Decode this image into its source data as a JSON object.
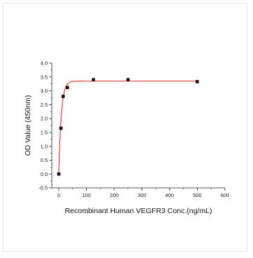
{
  "chart_data": {
    "type": "scatter",
    "title": "",
    "xlabel": "Recombinant Human VEGFR3 Conc.(ng/mL)",
    "ylabel": "OD Value (450nm)",
    "xlim": [
      -25,
      600
    ],
    "ylim": [
      -0.5,
      4.0
    ],
    "x_ticks": [
      0,
      100,
      200,
      300,
      400,
      500,
      600
    ],
    "y_ticks": [
      -0.5,
      0.0,
      0.5,
      1.0,
      1.5,
      2.0,
      2.5,
      3.0,
      3.5,
      4.0
    ],
    "x_tick_labels": [
      "0",
      "100",
      "200",
      "300",
      "400",
      "500",
      "600"
    ],
    "y_tick_labels": [
      "-0.5",
      "0.0",
      "0.5",
      "1.0",
      "1.5",
      "2.0",
      "2.5",
      "3.0",
      "3.5",
      "4.0"
    ],
    "grid": false,
    "legend": "none",
    "series": [
      {
        "marker": "square",
        "color": "#111111",
        "x": [
          0,
          7.8,
          15.6,
          31.25,
          125,
          250,
          500
        ],
        "y": [
          0.0,
          1.65,
          2.8,
          3.12,
          3.4,
          3.4,
          3.33
        ]
      }
    ],
    "fit": {
      "type": "curve",
      "color": "#e53935",
      "model": "y = a * (1 - exp(-b * x))",
      "a": 3.35,
      "b": 0.11
    }
  }
}
